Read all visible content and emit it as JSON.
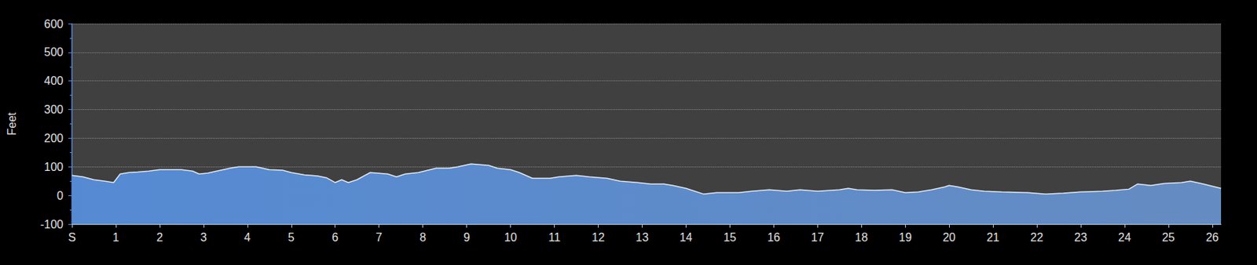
{
  "chart_data": {
    "type": "area",
    "y_label": "Feet",
    "color": "#4a78b8",
    "grid": true,
    "x": [
      0,
      0.25,
      0.5,
      0.75,
      0.95,
      1.1,
      1.3,
      1.5,
      1.75,
      2.0,
      2.5,
      2.75,
      2.9,
      3.1,
      3.3,
      3.6,
      3.8,
      4.2,
      4.5,
      4.8,
      5.0,
      5.3,
      5.6,
      5.8,
      6.0,
      6.15,
      6.3,
      6.5,
      6.8,
      7.2,
      7.4,
      7.6,
      7.9,
      8.3,
      8.6,
      8.8,
      9.1,
      9.5,
      9.7,
      10.0,
      10.2,
      10.5,
      10.9,
      11.1,
      11.5,
      11.8,
      12.2,
      12.5,
      12.9,
      13.2,
      13.5,
      13.7,
      14.0,
      14.2,
      14.4,
      14.7,
      15.2,
      15.5,
      15.9,
      16.3,
      16.6,
      17.0,
      17.5,
      17.7,
      17.9,
      18.3,
      18.7,
      19.0,
      19.3,
      19.6,
      19.9,
      20.0,
      20.2,
      20.5,
      20.8,
      21.2,
      21.8,
      22.2,
      22.6,
      23.0,
      23.5,
      23.8,
      24.1,
      24.3,
      24.6,
      24.9,
      25.3,
      25.5,
      25.8,
      26.2
    ],
    "values": [
      70,
      65,
      55,
      50,
      45,
      75,
      80,
      82,
      85,
      90,
      90,
      85,
      75,
      78,
      85,
      95,
      100,
      100,
      90,
      88,
      80,
      72,
      68,
      62,
      45,
      55,
      45,
      55,
      80,
      75,
      65,
      75,
      80,
      95,
      95,
      100,
      110,
      105,
      95,
      90,
      80,
      60,
      60,
      65,
      70,
      65,
      60,
      50,
      45,
      40,
      40,
      35,
      25,
      15,
      5,
      10,
      10,
      15,
      20,
      15,
      20,
      15,
      20,
      25,
      20,
      18,
      20,
      10,
      12,
      20,
      30,
      35,
      30,
      20,
      15,
      12,
      10,
      5,
      8,
      12,
      15,
      18,
      22,
      40,
      35,
      42,
      45,
      50,
      40,
      25
    ],
    "xlim": [
      0,
      26.2
    ],
    "xticks": [
      {
        "value": 0,
        "label": "S"
      },
      1,
      2,
      3,
      4,
      5,
      6,
      7,
      8,
      9,
      10,
      11,
      12,
      13,
      14,
      15,
      16,
      17,
      18,
      19,
      20,
      21,
      22,
      23,
      24,
      25,
      26
    ],
    "ylim": [
      -100,
      600
    ],
    "yticks": [
      -100,
      0,
      100,
      200,
      300,
      400,
      500,
      600
    ]
  }
}
